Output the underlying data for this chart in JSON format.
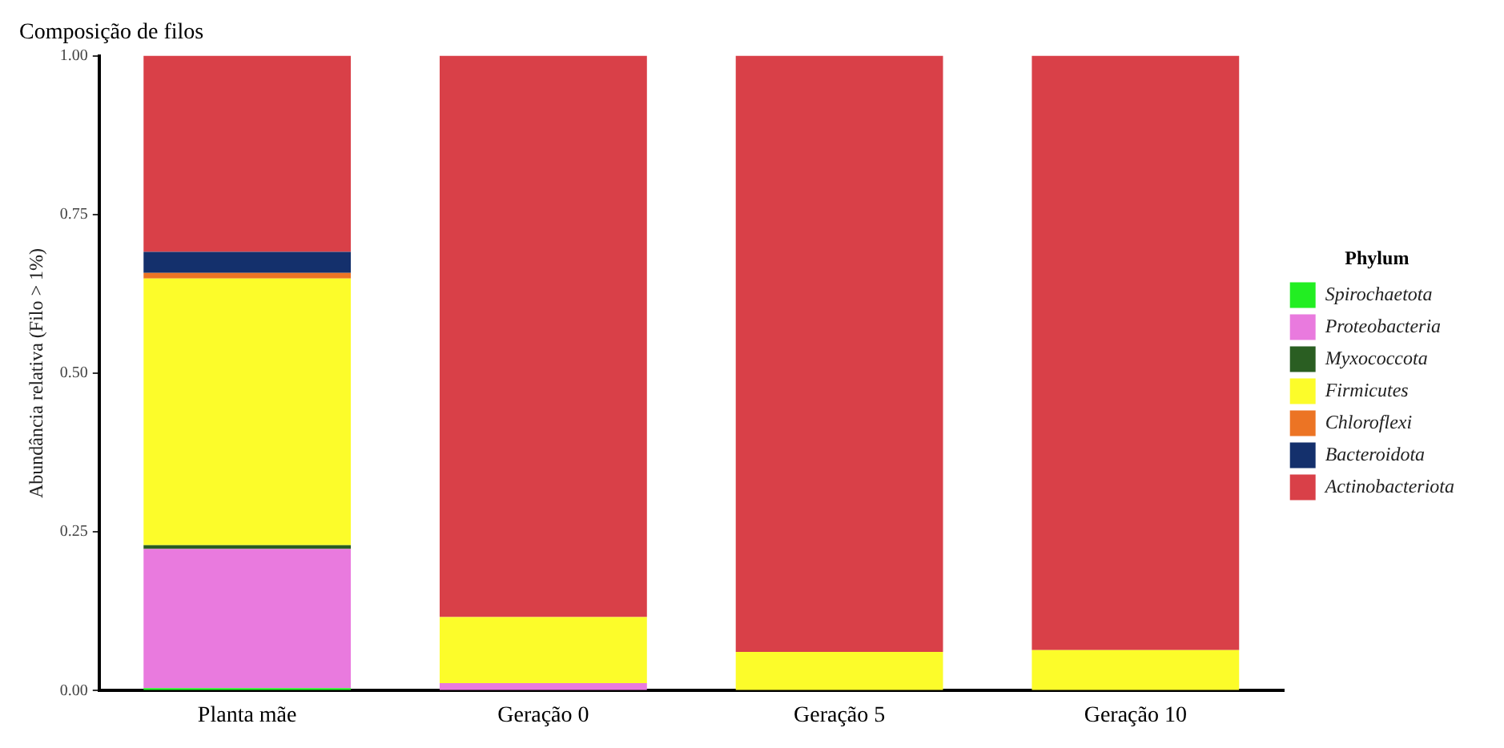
{
  "chart_data": {
    "type": "bar",
    "title": "Composição de filos",
    "ylabel": "Abundância relativa (Filo > 1%)",
    "legend_title": "Phylum",
    "categories": [
      "Planta mãe",
      "Geração 0",
      "Geração 5",
      "Geração 10"
    ],
    "stacked": true,
    "ylim": [
      0,
      1
    ],
    "yticks": [
      {
        "value": 0,
        "label": "0.00"
      },
      {
        "value": 0.25,
        "label": "0.25"
      },
      {
        "value": 0.5,
        "label": "0.50"
      },
      {
        "value": 0.75,
        "label": "0.75"
      },
      {
        "value": 1,
        "label": "1.00"
      }
    ],
    "grid": false,
    "legend": "right",
    "series": [
      {
        "name": "Spirochaetota",
        "color": "#22ee22",
        "values": [
          0.004,
          0,
          0,
          0
        ]
      },
      {
        "name": "Proteobacteria",
        "color": "#e97ade",
        "values": [
          0.219,
          0.012,
          0,
          0
        ]
      },
      {
        "name": "Myxococcota",
        "color": "#2a5e22",
        "values": [
          0.006,
          0,
          0,
          0
        ]
      },
      {
        "name": "Firmicutes",
        "color": "#fcfc2a",
        "values": [
          0.42,
          0.104,
          0.061,
          0.064
        ]
      },
      {
        "name": "Chloroflexi",
        "color": "#ec7424",
        "values": [
          0.009,
          0,
          0,
          0
        ]
      },
      {
        "name": "Bacteroidota",
        "color": "#14306c",
        "values": [
          0.033,
          0,
          0,
          0
        ]
      },
      {
        "name": "Actinobacteriota",
        "color": "#d94048",
        "values": [
          0.309,
          0.884,
          0.939,
          0.936
        ]
      }
    ]
  }
}
